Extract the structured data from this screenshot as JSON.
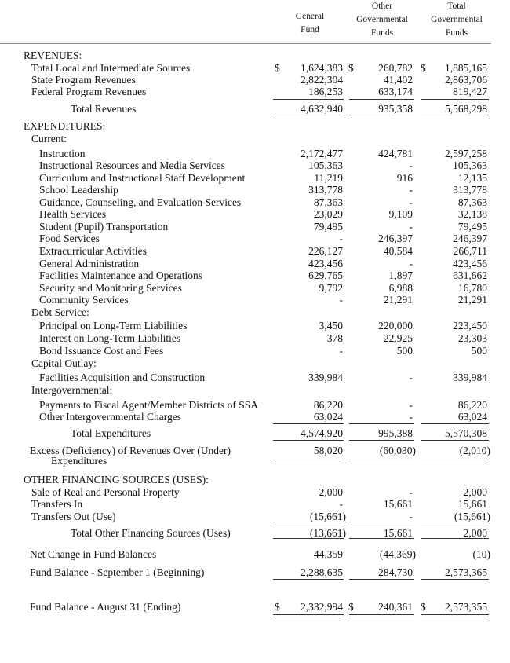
{
  "columns": [
    {
      "line1": "General",
      "line2": "Fund"
    },
    {
      "line0": "Other",
      "line1": "Governmental",
      "line2": "Funds"
    },
    {
      "line0": "Total",
      "line1": "Governmental",
      "line2": "Funds"
    }
  ],
  "rows": [
    {
      "label": "REVENUES:",
      "indent": 0
    },
    {
      "label": "Total Local and Intermediate Sources",
      "indent": 1,
      "values": [
        "1,624,383",
        "260,782",
        "1,885,165"
      ],
      "dollar": true
    },
    {
      "label": "State Program Revenues",
      "indent": 1,
      "values": [
        "2,822,304",
        "41,402",
        "2,863,706"
      ]
    },
    {
      "label": "Federal Program Revenues",
      "indent": 1,
      "values": [
        "186,253",
        "633,174",
        "819,427"
      ]
    },
    {
      "label": "Total Revenues",
      "indent": 3,
      "values": [
        "4,632,940",
        "935,358",
        "5,568,298"
      ]
    },
    {
      "label": "EXPENDITURES:",
      "indent": 0
    },
    {
      "label": "Current:",
      "indent": 1
    },
    {
      "label": "Instruction",
      "indent": 2,
      "values": [
        "2,172,477",
        "424,781",
        "2,597,258"
      ]
    },
    {
      "label": "Instructional Resources and Media Services",
      "indent": 2,
      "values": [
        "105,363",
        "-",
        "105,363"
      ]
    },
    {
      "label": "Curriculum and Instructional Staff Development",
      "indent": 2,
      "values": [
        "11,219",
        "916",
        "12,135"
      ]
    },
    {
      "label": "School Leadership",
      "indent": 2,
      "values": [
        "313,778",
        "-",
        "313,778"
      ]
    },
    {
      "label": "Guidance, Counseling, and Evaluation Services",
      "indent": 2,
      "values": [
        "87,363",
        "-",
        "87,363"
      ]
    },
    {
      "label": "Health Services",
      "indent": 2,
      "values": [
        "23,029",
        "9,109",
        "32,138"
      ]
    },
    {
      "label": "Student (Pupil) Transportation",
      "indent": 2,
      "values": [
        "79,495",
        "-",
        "79,495"
      ]
    },
    {
      "label": "Food Services",
      "indent": 2,
      "values": [
        "-",
        "246,397",
        "246,397"
      ]
    },
    {
      "label": "Extracurricular Activities",
      "indent": 2,
      "values": [
        "226,127",
        "40,584",
        "266,711"
      ]
    },
    {
      "label": "General Administration",
      "indent": 2,
      "values": [
        "423,456",
        "-",
        "423,456"
      ]
    },
    {
      "label": "Facilities Maintenance and Operations",
      "indent": 2,
      "values": [
        "629,765",
        "1,897",
        "631,662"
      ]
    },
    {
      "label": "Security and Monitoring Services",
      "indent": 2,
      "values": [
        "9,792",
        "6,988",
        "16,780"
      ]
    },
    {
      "label": "Community Services",
      "indent": 2,
      "values": [
        "-",
        "21,291",
        "21,291"
      ]
    },
    {
      "label": "Debt Service:",
      "indent": 1
    },
    {
      "label": "Principal on Long-Term Liabilities",
      "indent": 2,
      "values": [
        "3,450",
        "220,000",
        "223,450"
      ]
    },
    {
      "label": "Interest on Long-Term Liabilities",
      "indent": 2,
      "values": [
        "378",
        "22,925",
        "23,303"
      ]
    },
    {
      "label": "Bond Issuance Cost and Fees",
      "indent": 2,
      "values": [
        "-",
        "500",
        "500"
      ]
    },
    {
      "label": "Capital Outlay:",
      "indent": 1
    },
    {
      "label": "Facilities Acquisition and Construction",
      "indent": 2,
      "values": [
        "339,984",
        "-",
        "339,984"
      ]
    },
    {
      "label": "Intergovernmental:",
      "indent": 1
    },
    {
      "label": "Payments to Fiscal Agent/Member Districts of SSA",
      "indent": 2,
      "values": [
        "86,220",
        "-",
        "86,220"
      ]
    },
    {
      "label": "Other Intergovernmental Charges",
      "indent": 2,
      "values": [
        "63,024",
        "-",
        "63,024"
      ]
    },
    {
      "label": "Total Expenditures",
      "indent": 3,
      "values": [
        "4,574,920",
        "995,388",
        "5,570,308"
      ]
    },
    {
      "label": "Excess (Deficiency) of Revenues Over (Under)",
      "label2": "Expenditures",
      "indent": 1,
      "values": [
        "58,020",
        "(60,030)",
        "(2,010)"
      ]
    },
    {
      "label": "OTHER FINANCING SOURCES (USES):",
      "indent": 0
    },
    {
      "label": "Sale of Real and Personal Property",
      "indent": 1,
      "values": [
        "2,000",
        "-",
        "2,000"
      ]
    },
    {
      "label": "Transfers In",
      "indent": 1,
      "values": [
        "-",
        "15,661",
        "15,661"
      ]
    },
    {
      "label": "Transfers Out (Use)",
      "indent": 1,
      "values": [
        "(15,661)",
        "-",
        "(15,661)"
      ]
    },
    {
      "label": "Total Other Financing Sources (Uses)",
      "indent": 3,
      "values": [
        "(13,661)",
        "15,661",
        "2,000"
      ]
    },
    {
      "label": "Net Change in Fund Balances",
      "indent": 1,
      "values": [
        "44,359",
        "(44,369)",
        "(10)"
      ]
    },
    {
      "label": "Fund Balance - September 1 (Beginning)",
      "indent": 1,
      "values": [
        "2,288,635",
        "284,730",
        "2,573,365"
      ]
    },
    {
      "label": "Fund Balance - August 31 (Ending)",
      "indent": 1,
      "values": [
        "2,332,994",
        "240,361",
        "2,573,355"
      ],
      "dollar": true
    }
  ],
  "currency_symbol": "$"
}
